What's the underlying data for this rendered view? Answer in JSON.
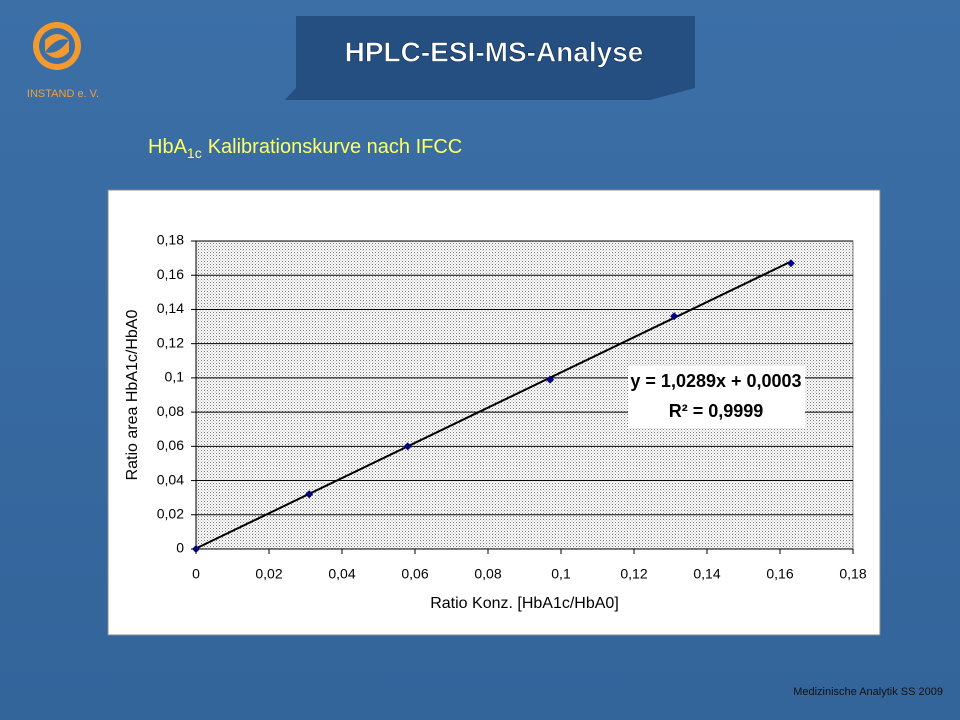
{
  "logo_text": "INSTAND e. V.",
  "title": "HPLC-ESI-MS-Analyse",
  "subtitle": {
    "base": "HbA",
    "subscript": "1c",
    "rest": "Kalibrationskurve nach IFCC"
  },
  "footer": "Medizinische Analytik SS 2009",
  "chart_data": {
    "type": "scatter",
    "x_label": "Ratio Konz. [HbA1c/HbA0]",
    "y_label": "Ratio area HbA1c/HbA0",
    "x": [
      0,
      0.031,
      0.058,
      0.097,
      0.131,
      0.163
    ],
    "values": [
      0,
      0.032,
      0.06,
      0.099,
      0.136,
      0.167
    ],
    "color": "#000080",
    "trendline": {
      "slope": 1.0289,
      "intercept": 0.0003,
      "color": "#000000"
    },
    "equation": "y = 1,0289x + 0,0003",
    "r_squared": "R² = 0,9999",
    "xlim": [
      0,
      0.18
    ],
    "ylim": [
      0,
      0.18
    ],
    "xticks": [
      0,
      {
        "value": 0.02,
        "label": "0,02"
      },
      {
        "value": 0.04,
        "label": "0,04"
      },
      {
        "value": 0.06,
        "label": "0,06"
      },
      {
        "value": 0.08,
        "label": "0,08"
      },
      {
        "value": 0.1,
        "label": "0,1"
      },
      {
        "value": 0.12,
        "label": "0,12"
      },
      {
        "value": 0.14,
        "label": "0,14"
      },
      {
        "value": 0.16,
        "label": "0,16"
      },
      {
        "value": 0.18,
        "label": "0,18"
      }
    ],
    "yticks": [
      0,
      {
        "value": 0.02,
        "label": "0,02"
      },
      {
        "value": 0.04,
        "label": "0,04"
      },
      {
        "value": 0.06,
        "label": "0,06"
      },
      {
        "value": 0.08,
        "label": "0,08"
      },
      {
        "value": 0.1,
        "label": "0,1"
      },
      {
        "value": 0.12,
        "label": "0,12"
      },
      {
        "value": 0.14,
        "label": "0,14"
      },
      {
        "value": 0.16,
        "label": "0,16"
      },
      {
        "value": 0.18,
        "label": "0,18"
      }
    ],
    "grid": true
  }
}
